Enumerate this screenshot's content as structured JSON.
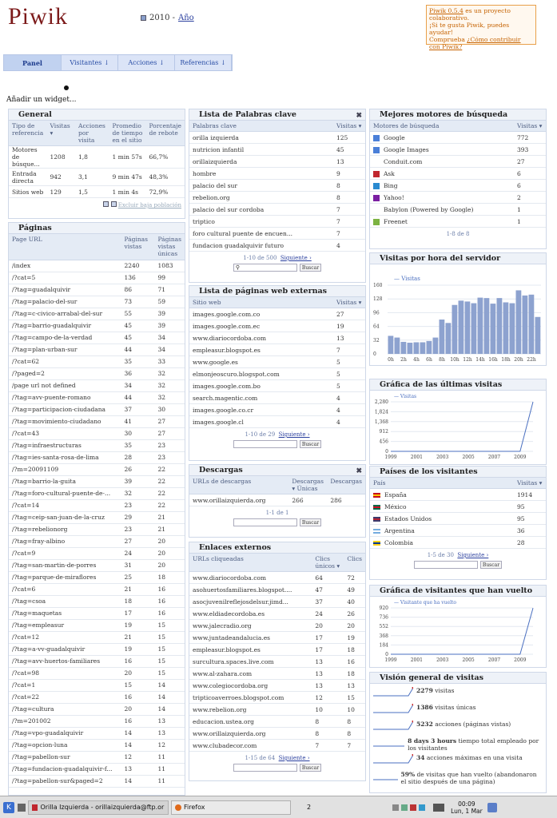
{
  "header": {
    "logo": "Piwik",
    "period_year": "2010 -",
    "period_link": "Año"
  },
  "promo": {
    "line1": "Piwik 0.5.4",
    "line1b": " es un proyecto colaborativo.",
    "line2": "¡Si te gusta Piwik, puedes ayudar!",
    "line3": "Comprueba ",
    "line3_link": "¿Cómo contribuir con Piwik?"
  },
  "nav": {
    "items": [
      "Panel",
      "Visitantes ↓",
      "Acciones ↓",
      "Referencias ↓"
    ]
  },
  "add_widget": "Añadir un widget...",
  "general": {
    "title": "General",
    "headers": [
      "Tipo de referencia",
      "Visitas ▾",
      "Acciones por visita",
      "Promedio de tiempo en el sitio",
      "Porcentaje de rebote"
    ],
    "rows": [
      [
        "Motores de búsque...",
        "1208",
        "1,8",
        "1 min 57s",
        "66,7%"
      ],
      [
        "Entrada directa",
        "942",
        "3,1",
        "9 min 47s",
        "48,3%"
      ],
      [
        "Sitios web",
        "129",
        "1,5",
        "1 min 4s",
        "72,9%"
      ]
    ],
    "footer": "Excluir baja población"
  },
  "pages": {
    "title": "Páginas",
    "headers": [
      "Page URL",
      "Páginas vistas",
      "Páginas vistas únicas"
    ],
    "rows": [
      [
        "/index",
        "2240",
        "1083"
      ],
      [
        "/?cat=5",
        "136",
        "99"
      ],
      [
        "/?tag=guadalquivir",
        "86",
        "71"
      ],
      [
        "/?tag=palacio-del-sur",
        "73",
        "59"
      ],
      [
        "/?tag=c-civico-arrabal-del-sur",
        "55",
        "39"
      ],
      [
        "/?tag=barrio-guadalquivir",
        "45",
        "39"
      ],
      [
        "/?tag=campo-de-la-verdad",
        "45",
        "34"
      ],
      [
        "/?tag=plan-urban-sur",
        "44",
        "34"
      ],
      [
        "/?cat=62",
        "35",
        "33"
      ],
      [
        "/?paged=2",
        "36",
        "32"
      ],
      [
        "/page url not defined",
        "34",
        "32"
      ],
      [
        "/?tag=avv-puente-romano",
        "44",
        "32"
      ],
      [
        "/?tag=participacion-ciudadana",
        "37",
        "30"
      ],
      [
        "/?tag=movimiento-ciudadano",
        "41",
        "27"
      ],
      [
        "/?cat=43",
        "30",
        "27"
      ],
      [
        "/?tag=infraestructuras",
        "35",
        "23"
      ],
      [
        "/?tag=ies-santa-rosa-de-lima",
        "28",
        "23"
      ],
      [
        "/?m=20091109",
        "26",
        "22"
      ],
      [
        "/?tag=barrio-la-guita",
        "39",
        "22"
      ],
      [
        "/?tag=foro-cultural-puente-de-...",
        "32",
        "22"
      ],
      [
        "/?cat=14",
        "23",
        "22"
      ],
      [
        "/?tag=ceip-san-juan-de-la-cruz",
        "29",
        "21"
      ],
      [
        "/?tag=rebelionorg",
        "23",
        "21"
      ],
      [
        "/?tag=fray-albino",
        "27",
        "20"
      ],
      [
        "/?cat=9",
        "24",
        "20"
      ],
      [
        "/?tag=san-martin-de-porres",
        "31",
        "20"
      ],
      [
        "/?tag=parque-de-miraflores",
        "25",
        "18"
      ],
      [
        "/?cat=6",
        "21",
        "16"
      ],
      [
        "/?tag=csoa",
        "18",
        "16"
      ],
      [
        "/?tag=maquetas",
        "17",
        "16"
      ],
      [
        "/?tag=empleasur",
        "19",
        "15"
      ],
      [
        "/?cat=12",
        "21",
        "15"
      ],
      [
        "/?tag=a-vv-guadalquivir",
        "19",
        "15"
      ],
      [
        "/?tag=avv-huertos-familiares",
        "16",
        "15"
      ],
      [
        "/?cat=98",
        "20",
        "15"
      ],
      [
        "/?cat=1",
        "15",
        "14"
      ],
      [
        "/?cat=22",
        "16",
        "14"
      ],
      [
        "/?tag=cultura",
        "20",
        "14"
      ],
      [
        "/?m=201002",
        "16",
        "13"
      ],
      [
        "/?tag=vpo-guadalquivir",
        "14",
        "13"
      ],
      [
        "/?tag=opcion-luna",
        "14",
        "12"
      ],
      [
        "/?tag=pabellon-sur",
        "12",
        "11"
      ],
      [
        "/?tag=fundacion-guadalquivir-f...",
        "13",
        "11"
      ],
      [
        "/?tag=pabellon-sur&paged=2",
        "14",
        "11"
      ]
    ]
  },
  "keywords": {
    "title": "Lista de Palabras clave",
    "headers": [
      "Palabras clave",
      "Visitas ▾"
    ],
    "rows": [
      [
        "orilla izquierda",
        "125"
      ],
      [
        "nutricion infantil",
        "45"
      ],
      [
        "orillaizquierda",
        "13"
      ],
      [
        "hombre",
        "9"
      ],
      [
        "palacio del sur",
        "8"
      ],
      [
        "rebelion.org",
        "8"
      ],
      [
        "palacio del sur cordoba",
        "7"
      ],
      [
        "triptico",
        "7"
      ],
      [
        "foro cultural puente de encuen...",
        "7"
      ],
      [
        "fundacion guadalquivir futuro",
        "4"
      ]
    ],
    "footer_range": "1-10 de 500",
    "footer_next": "Siguiente ›",
    "search_btn": "Buscar"
  },
  "engines": {
    "title": "Mejores motores de búsqueda",
    "headers": [
      "Motores de búsqueda",
      "Visitas ▾"
    ],
    "rows": [
      [
        "Google",
        "772",
        "#4a7fd8"
      ],
      [
        "Google Images",
        "393",
        "#4a7fd8"
      ],
      [
        "Conduit.com",
        "27",
        ""
      ],
      [
        "Ask",
        "6",
        "#c0262e"
      ],
      [
        "Bing",
        "6",
        "#2a8ad0"
      ],
      [
        "Yahoo!",
        "2",
        "#7b1fa2"
      ],
      [
        "Babylon (Powered by Google)",
        "1",
        ""
      ],
      [
        "Freenet",
        "1",
        "#7cb342"
      ]
    ],
    "footer": "1-8 de 8"
  },
  "hourly": {
    "title": "Visitas por hora del servidor",
    "legend": "Visitas"
  },
  "external_sites": {
    "title": "Lista de páginas web externas",
    "headers": [
      "Sitio web",
      "Visitas ▾"
    ],
    "rows": [
      [
        "images.google.com.co",
        "27"
      ],
      [
        "images.google.com.ec",
        "19"
      ],
      [
        "www.diariocordoba.com",
        "13"
      ],
      [
        "empleasur.blogspot.es",
        "7"
      ],
      [
        "www.google.es",
        "5"
      ],
      [
        "elmonjeoscuro.blogspot.com",
        "5"
      ],
      [
        "images.google.com.bo",
        "5"
      ],
      [
        "search.magentic.com",
        "4"
      ],
      [
        "images.google.co.cr",
        "4"
      ],
      [
        "images.google.cl",
        "4"
      ]
    ],
    "footer_range": "1-10 de 29",
    "footer_next": "Siguiente ›",
    "search_btn": "Buscar"
  },
  "last_visits": {
    "title": "Gráfica de las últimas visitas",
    "legend": "Visitas"
  },
  "downloads": {
    "title": "Descargas",
    "headers": [
      "URLs de descargas",
      "Descargas ▾ Únicas",
      "Descargas"
    ],
    "rows": [
      [
        "www.orillaizquierda.org",
        "266",
        "286"
      ]
    ],
    "footer": "1-1 de 1",
    "search_btn": "Buscar"
  },
  "countries": {
    "title": "Países de los visitantes",
    "headers": [
      "País",
      "Visitas ▾"
    ],
    "rows": [
      [
        "España",
        "1914"
      ],
      [
        "México",
        "95"
      ],
      [
        "Estados Unidos",
        "95"
      ],
      [
        "Argentina",
        "36"
      ],
      [
        "Colombia",
        "28"
      ]
    ],
    "footer_range": "1-5 de 30",
    "footer_next": "Siguiente ›",
    "search_btn": "Buscar"
  },
  "outlinks": {
    "title": "Enlaces externos",
    "headers": [
      "URLs cliqueadas",
      "Clics únicos ▾",
      "Clics"
    ],
    "rows": [
      [
        "www.diariocordoba.com",
        "64",
        "72"
      ],
      [
        "asohuertosfamiliares.blogspot....",
        "47",
        "49"
      ],
      [
        "asocjuvenilreflejosdelsur.jimd...",
        "37",
        "40"
      ],
      [
        "www.eldiadecordoba.es",
        "24",
        "26"
      ],
      [
        "www.jalecradio.org",
        "20",
        "20"
      ],
      [
        "www.juntadeandalucia.es",
        "17",
        "19"
      ],
      [
        "empleasur.blogspot.es",
        "17",
        "18"
      ],
      [
        "surcultura.spaces.live.com",
        "13",
        "16"
      ],
      [
        "www.al-zahara.com",
        "13",
        "18"
      ],
      [
        "www.colegiocordoba.org",
        "13",
        "13"
      ],
      [
        "tripticoaverroes.blogspot.com",
        "12",
        "15"
      ],
      [
        "www.rebelion.org",
        "10",
        "10"
      ],
      [
        "educacion.ustea.org",
        "8",
        "8"
      ],
      [
        "www.orillaizquierda.org",
        "8",
        "8"
      ],
      [
        "www.clubadecor.com",
        "7",
        "7"
      ]
    ],
    "footer_range": "1-15 de 64",
    "footer_next": "Siguiente ›",
    "search_btn": "Buscar"
  },
  "returning": {
    "title": "Gráfica de visitantes que han vuelto",
    "legend": "Visitante que ha vuelto"
  },
  "overview": {
    "title": "Visión general de visitas",
    "items": [
      {
        "num": "2279",
        "text": " visitas"
      },
      {
        "num": "1386",
        "text": " visitas únicas"
      },
      {
        "num": "5232",
        "text": " acciones (páginas vistas)"
      },
      {
        "num": "8 days 3 hours",
        "text": " tiempo total empleado por los visitantes"
      },
      {
        "num": "34",
        "text": " acciones máximas en una visita"
      },
      {
        "num": "59%",
        "text": " de visitas que han vuelto (abandonaron el sitio después de una página)"
      }
    ]
  },
  "taskbar": {
    "item1": "Orilla Izquierda - orillaizquierda@ftp.orilla",
    "item2": "Firefox",
    "desk": "2",
    "clock_time": "00:09",
    "clock_date": "Lun, 1 Mar"
  },
  "chart_data": [
    {
      "type": "bar",
      "title": "Visitas por hora del servidor",
      "categories": [
        "0h",
        "1h",
        "2h",
        "3h",
        "4h",
        "5h",
        "6h",
        "7h",
        "8h",
        "9h",
        "10h",
        "11h",
        "12h",
        "13h",
        "14h",
        "15h",
        "16h",
        "17h",
        "18h",
        "19h",
        "20h",
        "21h",
        "22h",
        "23h"
      ],
      "series": [
        {
          "name": "Visitas",
          "values": [
            42,
            38,
            28,
            26,
            27,
            27,
            30,
            38,
            80,
            72,
            114,
            124,
            122,
            118,
            131,
            130,
            117,
            130,
            120,
            118,
            148,
            136,
            138,
            86
          ]
        }
      ],
      "ylim": [
        0,
        160
      ],
      "yticks": [
        0,
        32,
        64,
        96,
        128,
        160
      ]
    },
    {
      "type": "line",
      "title": "Gráfica de las últimas visitas",
      "x": [
        1999,
        2000,
        2001,
        2002,
        2003,
        2004,
        2005,
        2006,
        2007,
        2008,
        2009,
        2010
      ],
      "series": [
        {
          "name": "Visitas",
          "values": [
            0,
            0,
            0,
            0,
            0,
            0,
            0,
            0,
            0,
            0,
            0,
            2279
          ]
        }
      ],
      "ylim": [
        0,
        2280
      ],
      "yticks": [
        0,
        456,
        912,
        1368,
        1824,
        2280
      ],
      "xticks": [
        1999,
        2001,
        2003,
        2005,
        2007,
        2009
      ]
    },
    {
      "type": "line",
      "title": "Gráfica de visitantes que han vuelto",
      "x": [
        1999,
        2000,
        2001,
        2002,
        2003,
        2004,
        2005,
        2006,
        2007,
        2008,
        2009,
        2010
      ],
      "series": [
        {
          "name": "Visitante que ha vuelto",
          "values": [
            0,
            0,
            0,
            0,
            0,
            0,
            0,
            0,
            0,
            0,
            0,
            918
          ]
        }
      ],
      "ylim": [
        0,
        920
      ],
      "yticks": [
        0,
        184,
        368,
        552,
        736,
        920
      ],
      "xticks": [
        1999,
        2001,
        2003,
        2005,
        2007,
        2009
      ]
    }
  ]
}
